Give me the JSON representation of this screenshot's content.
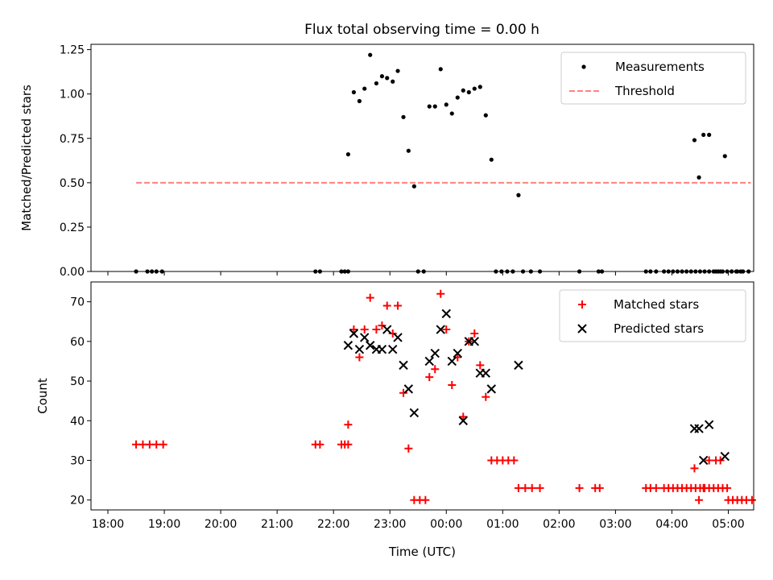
{
  "figure": {
    "title": "Flux total observing time = 0.00 h"
  },
  "chart_data": [
    {
      "type": "scatter",
      "panel": "top",
      "title": "Flux total observing time = 0.00 h",
      "xlabel": "",
      "ylabel": "Matched/Predicted stars",
      "xunit": "hours since 18:00 UTC",
      "xlim": [
        -0.3,
        11.45
      ],
      "ylim": [
        0,
        1.28
      ],
      "yticks": [
        0,
        0.25,
        0.5,
        0.75,
        1.0,
        1.25
      ],
      "ytick_labels": [
        "0.00",
        "0.25",
        "0.50",
        "0.75",
        "1.00",
        "1.25"
      ],
      "legend": {
        "placement": "top-right",
        "entries": [
          "Measurements",
          "Threshold"
        ]
      },
      "series": [
        {
          "name": "Measurements",
          "marker": "dot",
          "color": "#000000",
          "points": [
            [
              0.5,
              0
            ],
            [
              0.7,
              0
            ],
            [
              0.78,
              0
            ],
            [
              0.86,
              0
            ],
            [
              0.96,
              0
            ],
            [
              3.68,
              0
            ],
            [
              3.76,
              0
            ],
            [
              4.14,
              0
            ],
            [
              4.2,
              0
            ],
            [
              4.26,
              0
            ],
            [
              4.26,
              0.66
            ],
            [
              4.36,
              1.01
            ],
            [
              4.46,
              0.96
            ],
            [
              4.55,
              1.03
            ],
            [
              4.65,
              1.22
            ],
            [
              4.76,
              1.06
            ],
            [
              4.86,
              1.1
            ],
            [
              4.95,
              1.09
            ],
            [
              5.05,
              1.07
            ],
            [
              5.14,
              1.13
            ],
            [
              5.24,
              0.87
            ],
            [
              5.33,
              0.68
            ],
            [
              5.43,
              0.48
            ],
            [
              5.5,
              0
            ],
            [
              5.6,
              0
            ],
            [
              5.7,
              0.93
            ],
            [
              5.8,
              0.93
            ],
            [
              5.9,
              1.14
            ],
            [
              6.0,
              0.94
            ],
            [
              6.1,
              0.89
            ],
            [
              6.2,
              0.98
            ],
            [
              6.3,
              1.02
            ],
            [
              6.4,
              1.01
            ],
            [
              6.5,
              1.03
            ],
            [
              6.6,
              1.04
            ],
            [
              6.7,
              0.88
            ],
            [
              6.8,
              0.63
            ],
            [
              6.88,
              0
            ],
            [
              6.98,
              0
            ],
            [
              7.08,
              0
            ],
            [
              7.18,
              0
            ],
            [
              7.28,
              0.43
            ],
            [
              7.36,
              0
            ],
            [
              7.5,
              0
            ],
            [
              7.66,
              0
            ],
            [
              8.36,
              0
            ],
            [
              8.7,
              0
            ],
            [
              8.76,
              0
            ],
            [
              9.54,
              0
            ],
            [
              9.62,
              0
            ],
            [
              9.72,
              0
            ],
            [
              9.86,
              0
            ],
            [
              9.94,
              0
            ],
            [
              10.02,
              0
            ],
            [
              10.1,
              0
            ],
            [
              10.18,
              0
            ],
            [
              10.26,
              0
            ],
            [
              10.34,
              0
            ],
            [
              10.42,
              0
            ],
            [
              10.5,
              0
            ],
            [
              10.58,
              0
            ],
            [
              10.66,
              0
            ],
            [
              10.74,
              0
            ],
            [
              10.82,
              0
            ],
            [
              10.9,
              0
            ],
            [
              10.98,
              0
            ],
            [
              11.06,
              0
            ],
            [
              11.14,
              0
            ],
            [
              11.22,
              0
            ],
            [
              10.4,
              0.74
            ],
            [
              10.48,
              0.53
            ],
            [
              10.56,
              0.77
            ],
            [
              10.66,
              0.77
            ],
            [
              10.94,
              0.65
            ],
            [
              10.78,
              0
            ],
            [
              10.86,
              0
            ],
            [
              11.06,
              0
            ],
            [
              11.16,
              0
            ],
            [
              11.26,
              0
            ],
            [
              11.36,
              0
            ]
          ]
        },
        {
          "name": "Threshold",
          "style": "dashed",
          "color": "#ff8080",
          "points": [
            [
              0.5,
              0.5
            ],
            [
              11.4,
              0.5
            ]
          ]
        }
      ]
    },
    {
      "type": "scatter",
      "panel": "bottom",
      "title": "",
      "xlabel": "Time (UTC)",
      "ylabel": "Count",
      "xunit": "hours since 18:00 UTC",
      "xlim": [
        -0.3,
        11.45
      ],
      "ylim": [
        17.5,
        75
      ],
      "yticks": [
        20,
        30,
        40,
        50,
        60,
        70
      ],
      "ytick_labels": [
        "20",
        "30",
        "40",
        "50",
        "60",
        "70"
      ],
      "xticks": [
        0,
        1,
        2,
        3,
        4,
        5,
        6,
        7,
        8,
        9,
        10,
        11
      ],
      "xtick_labels": [
        "18:00",
        "19:00",
        "20:00",
        "21:00",
        "22:00",
        "23:00",
        "00:00",
        "01:00",
        "02:00",
        "03:00",
        "04:00",
        "05:00"
      ],
      "legend": {
        "placement": "top-right",
        "entries": [
          "Matched stars",
          "Predicted stars"
        ]
      },
      "series": [
        {
          "name": "Matched stars",
          "marker": "plus",
          "color": "#ff0000",
          "points": [
            [
              0.5,
              34
            ],
            [
              0.62,
              34
            ],
            [
              0.74,
              34
            ],
            [
              0.86,
              34
            ],
            [
              0.98,
              34
            ],
            [
              3.68,
              34
            ],
            [
              3.76,
              34
            ],
            [
              4.14,
              34
            ],
            [
              4.2,
              34
            ],
            [
              4.26,
              34
            ],
            [
              4.26,
              39
            ],
            [
              4.36,
              63
            ],
            [
              4.46,
              56
            ],
            [
              4.55,
              63
            ],
            [
              4.65,
              71
            ],
            [
              4.76,
              63
            ],
            [
              4.86,
              64
            ],
            [
              4.95,
              69
            ],
            [
              5.05,
              62
            ],
            [
              5.14,
              69
            ],
            [
              5.24,
              47
            ],
            [
              5.33,
              33
            ],
            [
              5.43,
              20
            ],
            [
              5.53,
              20
            ],
            [
              5.63,
              20
            ],
            [
              5.7,
              51
            ],
            [
              5.8,
              53
            ],
            [
              5.9,
              72
            ],
            [
              6.0,
              63
            ],
            [
              6.1,
              49
            ],
            [
              6.2,
              56
            ],
            [
              6.3,
              41
            ],
            [
              6.4,
              60
            ],
            [
              6.5,
              62
            ],
            [
              6.6,
              54
            ],
            [
              6.7,
              46
            ],
            [
              6.8,
              30
            ],
            [
              6.9,
              30
            ],
            [
              7.0,
              30
            ],
            [
              7.1,
              30
            ],
            [
              7.2,
              30
            ],
            [
              7.28,
              23
            ],
            [
              7.4,
              23
            ],
            [
              7.52,
              23
            ],
            [
              7.66,
              23
            ],
            [
              8.36,
              23
            ],
            [
              8.64,
              23
            ],
            [
              8.72,
              23
            ],
            [
              9.54,
              23
            ],
            [
              9.62,
              23
            ],
            [
              9.72,
              23
            ],
            [
              9.86,
              23
            ],
            [
              9.94,
              23
            ],
            [
              10.02,
              23
            ],
            [
              10.1,
              23
            ],
            [
              10.18,
              23
            ],
            [
              10.26,
              23
            ],
            [
              10.34,
              23
            ],
            [
              10.42,
              23
            ],
            [
              10.5,
              23
            ],
            [
              10.58,
              23
            ],
            [
              10.66,
              23
            ],
            [
              10.74,
              23
            ],
            [
              10.82,
              23
            ],
            [
              10.9,
              23
            ],
            [
              10.98,
              23
            ],
            [
              10.4,
              28
            ],
            [
              10.48,
              20
            ],
            [
              10.56,
              23
            ],
            [
              10.66,
              30
            ],
            [
              10.78,
              30
            ],
            [
              10.86,
              30
            ],
            [
              11.0,
              20
            ],
            [
              11.08,
              20
            ],
            [
              11.16,
              20
            ],
            [
              11.24,
              20
            ],
            [
              11.32,
              20
            ],
            [
              11.42,
              20
            ]
          ]
        },
        {
          "name": "Predicted stars",
          "marker": "x",
          "color": "#000000",
          "points": [
            [
              4.26,
              59
            ],
            [
              4.36,
              62
            ],
            [
              4.46,
              58
            ],
            [
              4.55,
              61
            ],
            [
              4.65,
              59
            ],
            [
              4.76,
              58
            ],
            [
              4.86,
              58
            ],
            [
              4.95,
              63
            ],
            [
              5.05,
              58
            ],
            [
              5.14,
              61
            ],
            [
              5.24,
              54
            ],
            [
              5.33,
              48
            ],
            [
              5.43,
              42
            ],
            [
              5.7,
              55
            ],
            [
              5.8,
              57
            ],
            [
              5.9,
              63
            ],
            [
              6.0,
              67
            ],
            [
              6.1,
              55
            ],
            [
              6.2,
              57
            ],
            [
              6.3,
              40
            ],
            [
              6.4,
              60
            ],
            [
              6.5,
              60
            ],
            [
              6.6,
              52
            ],
            [
              6.7,
              52
            ],
            [
              6.8,
              48
            ],
            [
              7.28,
              54
            ],
            [
              10.4,
              38
            ],
            [
              10.48,
              38
            ],
            [
              10.56,
              30
            ],
            [
              10.66,
              39
            ],
            [
              10.94,
              31
            ]
          ]
        }
      ]
    }
  ]
}
